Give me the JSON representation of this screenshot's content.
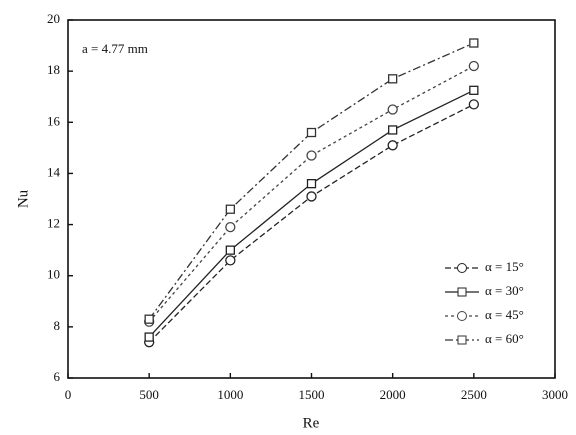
{
  "chart_data": {
    "type": "line",
    "annotation": "a = 4.77 mm",
    "x_label": "Re",
    "y_label": "Nu",
    "x": [
      500,
      1000,
      1500,
      2000,
      2500
    ],
    "series": [
      {
        "name": "α = 15°",
        "color": "#222",
        "marker": "circle",
        "dash": "6,3",
        "values": [
          7.4,
          10.6,
          13.1,
          15.1,
          16.7
        ]
      },
      {
        "name": "α = 30°",
        "color": "#222",
        "marker": "square",
        "dash": "none",
        "values": [
          7.6,
          11.0,
          13.6,
          15.7,
          17.25
        ]
      },
      {
        "name": "α = 45°",
        "color": "#444",
        "marker": "circle",
        "dash": "3,3",
        "values": [
          8.2,
          11.9,
          14.7,
          16.5,
          18.2
        ]
      },
      {
        "name": "α = 60°",
        "color": "#333",
        "marker": "square",
        "dash": "8,3,2,3",
        "values": [
          8.3,
          12.6,
          15.6,
          17.7,
          19.1
        ]
      }
    ],
    "xlim": [
      0,
      3000
    ],
    "xticks": [
      0,
      500,
      1000,
      1500,
      2000,
      2500,
      3000
    ],
    "ylim": [
      6,
      20
    ],
    "yticks": [
      6,
      8,
      10,
      12,
      14,
      16,
      18,
      20
    ],
    "legend": "lower right"
  }
}
